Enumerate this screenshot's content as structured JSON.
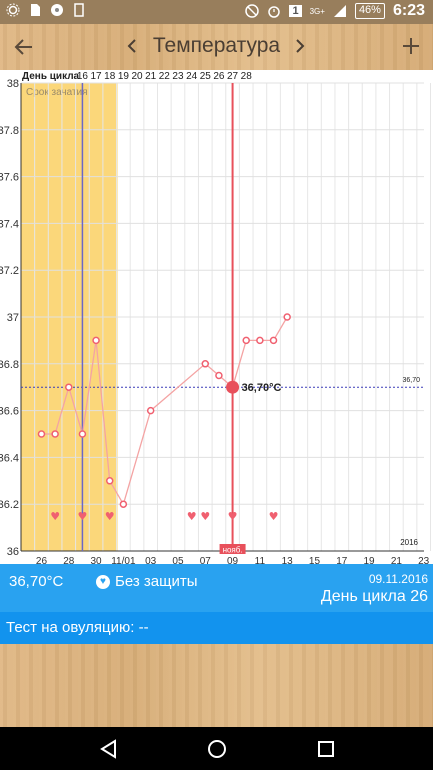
{
  "status": {
    "network": "3G+",
    "sim": "1",
    "battery": "46%",
    "time": "6:23"
  },
  "header": {
    "title": "Температура",
    "back_icon": "arrow-left-icon",
    "add_icon": "plus-icon",
    "prev_icon": "chevron-left-icon",
    "next_icon": "chevron-right-icon"
  },
  "chart_data": {
    "type": "line",
    "cycle_label": "День цикла",
    "conception_label": "Срок зачатия",
    "cycle_days": [
      "16",
      "17",
      "18",
      "19",
      "20",
      "21",
      "22",
      "23",
      "24",
      "25",
      "26",
      "27",
      "28"
    ],
    "x_tick_labels": [
      "26",
      "28",
      "30",
      "11/01",
      "03",
      "05",
      "07",
      "09",
      "11",
      "13",
      "15",
      "17",
      "19",
      "21",
      "23"
    ],
    "month_badge": "нояб.",
    "year_label": "2016",
    "ylim": [
      36,
      38
    ],
    "y_ticks": [
      "36",
      "36.2",
      "36.4",
      "36.6",
      "36.8",
      "37",
      "37.2",
      "37.4",
      "37.6",
      "37.8",
      "38"
    ],
    "series": [
      {
        "x": [
          "26",
          "27",
          "28",
          "29",
          "30",
          "31",
          "11/01",
          "02",
          "03",
          "07",
          "08",
          "09",
          "10",
          "11",
          "12",
          "13"
        ],
        "values": [
          36.5,
          36.5,
          36.7,
          36.5,
          36.9,
          36.3,
          36.2,
          null,
          36.6,
          36.8,
          36.75,
          36.7,
          36.9,
          36.9,
          36.9,
          37.0
        ]
      }
    ],
    "hearts_x": [
      "27",
      "29",
      "31",
      "06",
      "07",
      "09",
      "12"
    ],
    "selected_x": "09",
    "selected_value": 36.7,
    "selected_label": "36,70°C",
    "coverline_value": 36.7,
    "coverline_label": "36,70",
    "ovulation_x": "29",
    "fertile_window": [
      "25",
      "31"
    ],
    "colors": {
      "line": "#f4a3a3",
      "point": "#f06070",
      "fertile": "#fbd77a",
      "ovulation": "#6a67c7",
      "selected": "#e8505b"
    }
  },
  "info": {
    "temperature": "36,70°C",
    "protection": "Без защиты",
    "date": "09.11.2016",
    "cycle_day": "День цикла 26"
  },
  "ovulation_test": {
    "label": "Тест на овуляцию: --"
  },
  "nav": {
    "back_icon": "triangle-back-icon",
    "home_icon": "circle-home-icon",
    "recents_icon": "square-recents-icon"
  }
}
